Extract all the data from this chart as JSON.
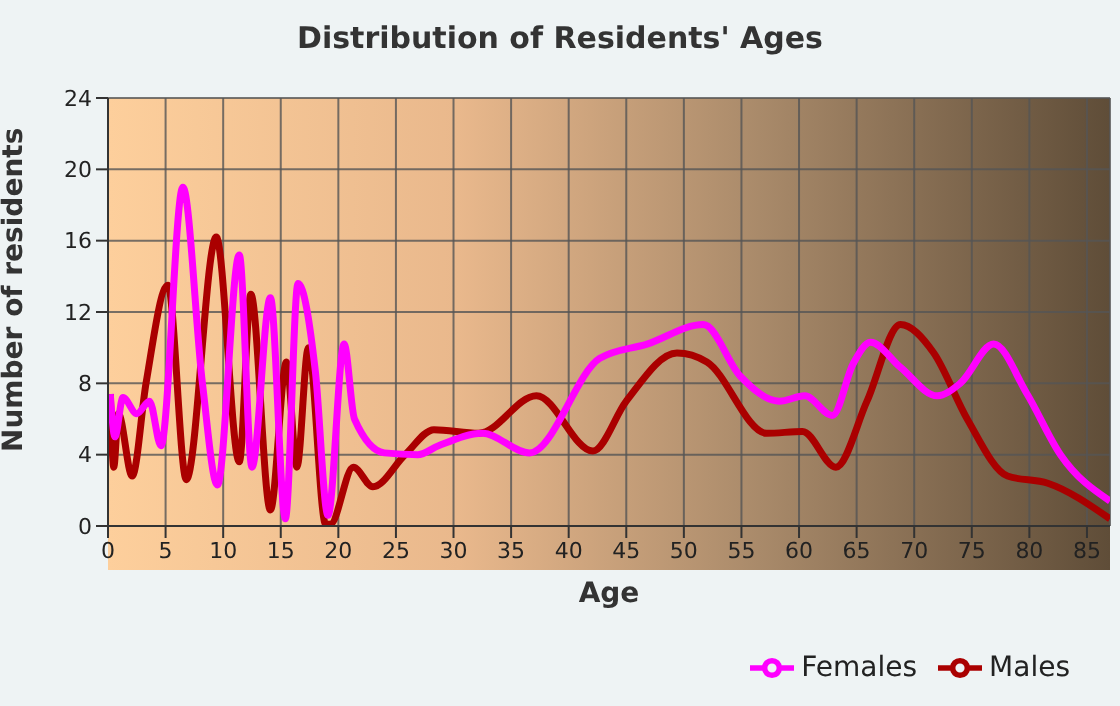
{
  "chart_data": {
    "type": "line",
    "title": "Distribution of Residents' Ages",
    "xlabel": "Age",
    "ylabel": "Number of residents",
    "xlim": [
      0,
      87
    ],
    "xticks": [
      0,
      5,
      10,
      15,
      20,
      25,
      30,
      35,
      40,
      45,
      50,
      55,
      60,
      65,
      70,
      75,
      80,
      85
    ],
    "ylim": [
      0,
      24
    ],
    "yticks": [
      0,
      4,
      8,
      12,
      16,
      20,
      24
    ],
    "grid": true,
    "legend": "bottom right",
    "marker": "none",
    "line_style": "solid",
    "series": [
      {
        "name": "Males",
        "color": "#aa0000",
        "x": [
          0.2,
          0.5,
          0.9,
          2.1,
          3.3,
          5.2,
          6.8,
          9.4,
          11.4,
          12.4,
          14.1,
          15.5,
          16.4,
          17.4,
          18.9,
          19.3,
          21.3,
          23.0,
          25.8,
          28.3,
          32.2,
          37.2,
          42.1,
          45.0,
          49.4,
          52.0,
          57.2,
          60.3,
          63.2,
          65.9,
          68.8,
          71.7,
          74.6,
          78.1,
          81.6,
          87.0
        ],
        "values": [
          7.4,
          3.3,
          6.3,
          2.8,
          8.0,
          13.5,
          2.6,
          16.2,
          3.6,
          13.0,
          0.9,
          9.2,
          3.3,
          10.0,
          0.1,
          0.1,
          3.3,
          2.2,
          4.0,
          5.4,
          5.2,
          7.3,
          4.2,
          7.0,
          9.7,
          9.2,
          5.2,
          5.3,
          3.3,
          7.0,
          11.3,
          9.7,
          6.0,
          2.8,
          2.4,
          0.4
        ]
      },
      {
        "name": "Females",
        "color": "#ff00ff",
        "x": [
          0.2,
          0.6,
          1.3,
          2.5,
          3.6,
          4.6,
          6.5,
          8.2,
          9.5,
          11.4,
          12.5,
          14.1,
          15.4,
          16.5,
          18.0,
          19.1,
          20.5,
          21.4,
          24.0,
          26.9,
          28.7,
          32.5,
          36.6,
          42.7,
          46.8,
          51.7,
          54.9,
          58.3,
          60.5,
          62.9,
          64.7,
          66.2,
          68.8,
          72.0,
          74.0,
          76.9,
          79.8,
          82.7,
          87.0
        ],
        "values": [
          7.4,
          5.0,
          7.2,
          6.3,
          7.0,
          4.5,
          19.0,
          8.0,
          2.3,
          15.2,
          3.3,
          12.8,
          0.4,
          13.6,
          8.7,
          0.6,
          10.2,
          6.0,
          4.1,
          4.0,
          4.5,
          5.2,
          4.1,
          9.4,
          10.2,
          11.3,
          8.4,
          7.0,
          7.3,
          6.2,
          9.1,
          10.3,
          8.9,
          7.3,
          8.0,
          10.2,
          7.4,
          4.0,
          1.4
        ]
      }
    ]
  }
}
